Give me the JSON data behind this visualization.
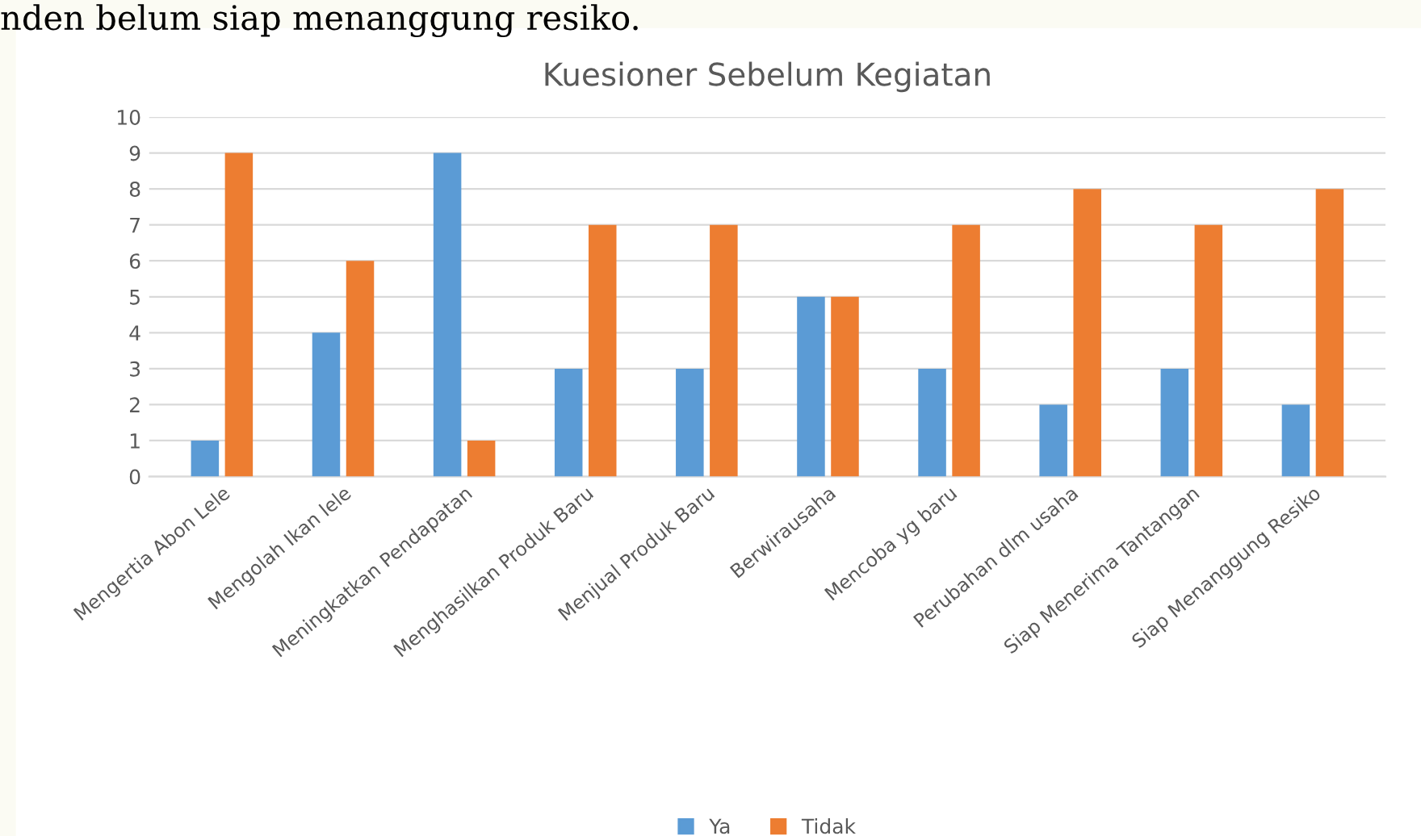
{
  "chart_data": {
    "type": "bar",
    "title": "Kuesioner Sebelum Kegiatan",
    "annotations": [
      "nden belum siap menanggung resiko."
    ],
    "categories": [
      "Mengertia Abon Lele",
      "Mengolah Ikan lele",
      "Meningkatkan Pendapatan",
      "Menghasilkan Produk Baru",
      "Menjual Produk Baru",
      "Berwirausaha",
      "Mencoba yg baru",
      "Perubahan dlm usaha",
      "Siap Menerima Tantangan",
      "Siap Menanggung Resiko"
    ],
    "series": [
      {
        "name": "Ya",
        "color": "#5b9bd5",
        "values": [
          1,
          4,
          9,
          3,
          3,
          5,
          3,
          2,
          3,
          2
        ]
      },
      {
        "name": "Tidak",
        "color": "#ed7d31",
        "values": [
          9,
          6,
          1,
          7,
          7,
          5,
          7,
          8,
          7,
          8
        ]
      }
    ],
    "ylim": [
      0,
      10
    ],
    "yticks": [
      0,
      1,
      2,
      3,
      4,
      5,
      6,
      7,
      8,
      9,
      10
    ],
    "grid": "y",
    "legend": "bottom"
  }
}
